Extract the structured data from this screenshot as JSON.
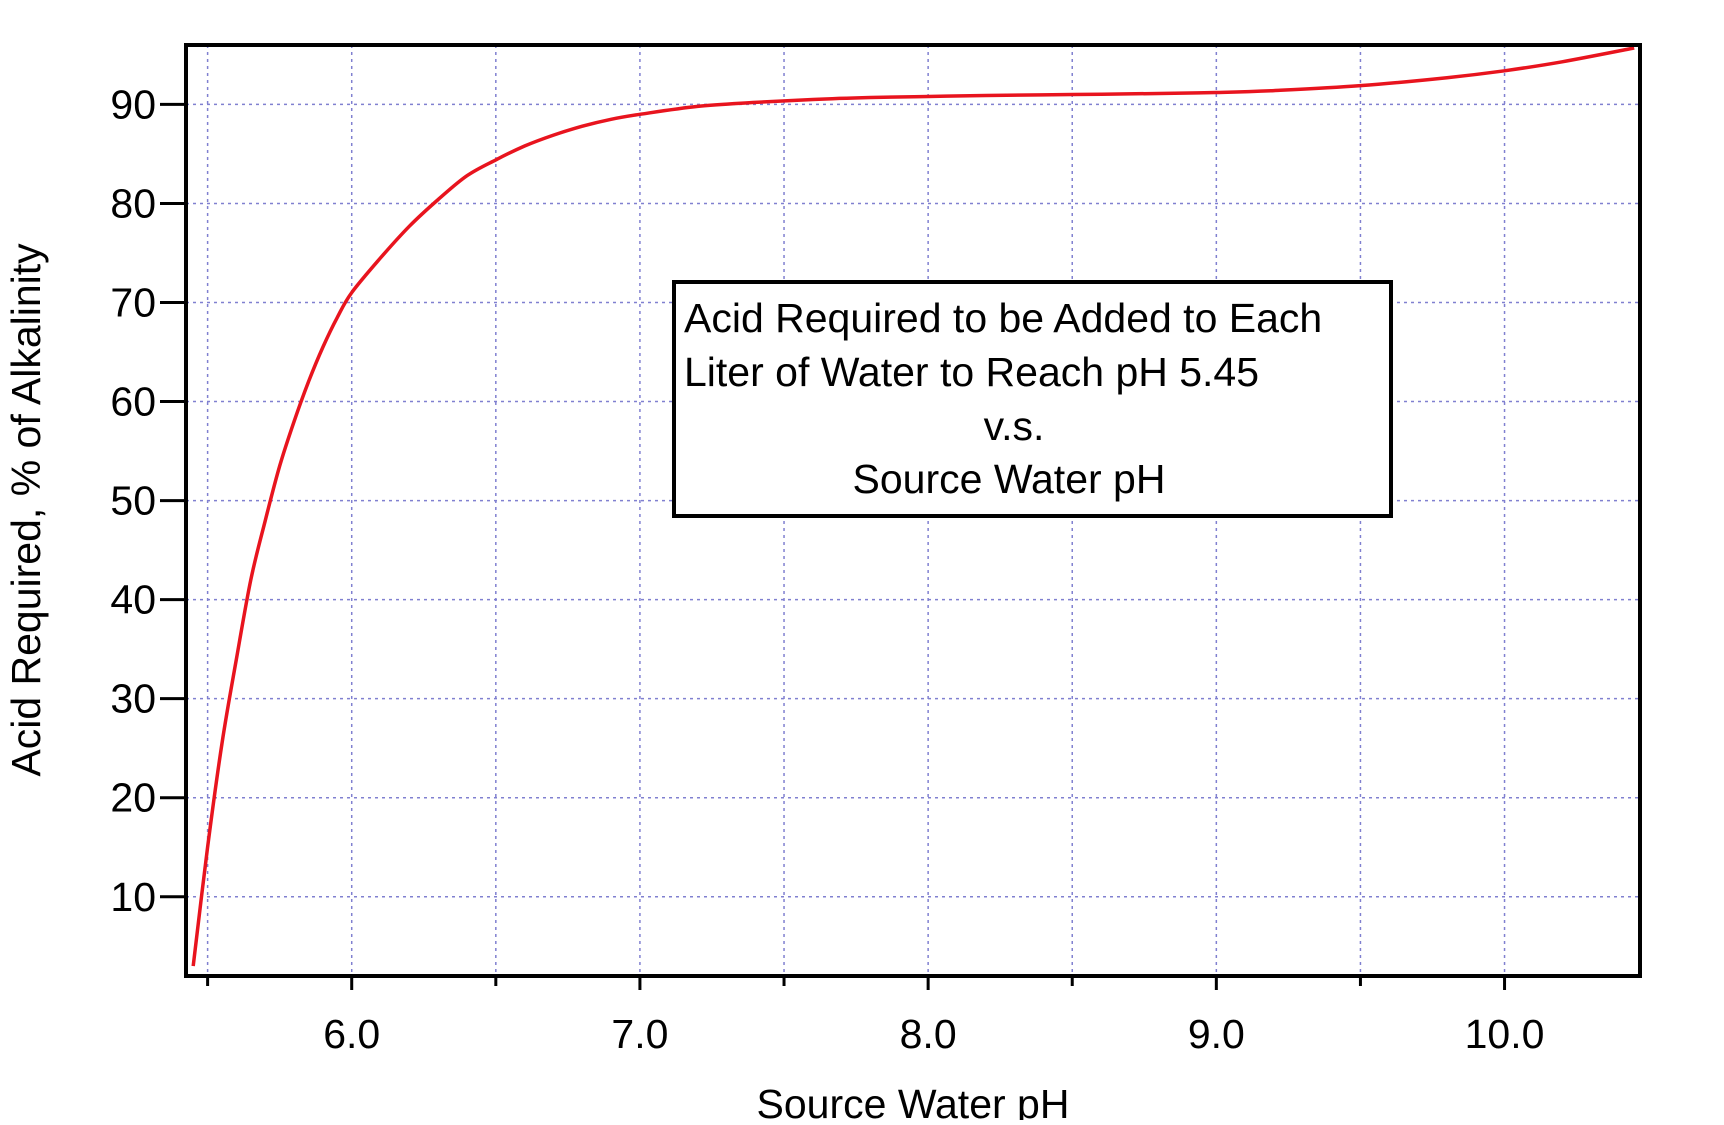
{
  "chart_data": {
    "type": "line",
    "title": "",
    "xlabel": "Source Water pH",
    "ylabel": "Acid Required, % of Alkalinity",
    "xlim": [
      5.425,
      10.47
    ],
    "ylim": [
      2.0,
      96.0
    ],
    "x_ticks": [
      {
        "value": 6.0,
        "label": "6.0"
      },
      {
        "value": 7.0,
        "label": "7.0"
      },
      {
        "value": 8.0,
        "label": "8.0"
      },
      {
        "value": 9.0,
        "label": "9.0"
      },
      {
        "value": 10.0,
        "label": "10.0"
      }
    ],
    "x_minor_ticks": [
      5.5,
      6.5,
      7.5,
      8.5,
      9.5
    ],
    "x_grid": [
      5.5,
      6.0,
      6.5,
      7.0,
      7.5,
      8.0,
      8.5,
      9.0,
      9.5,
      10.0
    ],
    "y_ticks": [
      {
        "value": 10,
        "label": "10"
      },
      {
        "value": 20,
        "label": "20"
      },
      {
        "value": 30,
        "label": "30"
      },
      {
        "value": 40,
        "label": "40"
      },
      {
        "value": 50,
        "label": "50"
      },
      {
        "value": 60,
        "label": "60"
      },
      {
        "value": 70,
        "label": "70"
      },
      {
        "value": 80,
        "label": "80"
      },
      {
        "value": 90,
        "label": "90"
      }
    ],
    "grid": true,
    "series": [
      {
        "name": "Acid Required",
        "color": "#e8141e",
        "x": [
          5.45,
          5.5,
          5.55,
          5.6,
          5.65,
          5.7,
          5.75,
          5.8,
          5.85,
          5.9,
          5.95,
          6.0,
          6.1,
          6.2,
          6.3,
          6.4,
          6.5,
          6.6,
          6.7,
          6.8,
          6.9,
          7.0,
          7.2,
          7.4,
          7.6,
          7.8,
          8.0,
          8.2,
          8.5,
          8.8,
          9.0,
          9.2,
          9.5,
          9.8,
          10.0,
          10.2,
          10.45
        ],
        "y": [
          3.0,
          15.0,
          25.5,
          34.0,
          42.0,
          48.0,
          53.5,
          58.0,
          62.0,
          65.5,
          68.5,
          71.0,
          74.5,
          77.7,
          80.4,
          82.8,
          84.4,
          85.8,
          86.9,
          87.8,
          88.5,
          89.0,
          89.8,
          90.2,
          90.5,
          90.7,
          90.8,
          90.9,
          91.0,
          91.1,
          91.2,
          91.4,
          91.9,
          92.7,
          93.4,
          94.3,
          95.7
        ]
      }
    ],
    "annotation": {
      "lines": [
        "Acid Required to be Added to Each",
        "Liter of Water to Reach pH 5.45",
        "v.s.",
        "Source Water pH"
      ],
      "position": "center"
    },
    "colors": {
      "grid": "#8080d0",
      "axis": "#000000",
      "line": "#e8141e"
    }
  }
}
